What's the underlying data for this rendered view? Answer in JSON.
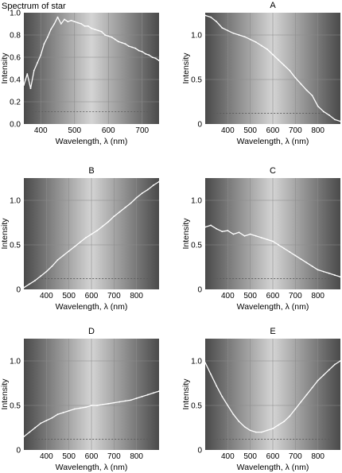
{
  "chart_data": [
    {
      "id": "spectrum-of-star",
      "type": "line",
      "title": "Spectrum of star",
      "xlabel": "Wavelength, λ (nm)",
      "ylabel": "Intensity",
      "xlim": [
        350,
        750
      ],
      "ylim": [
        0,
        1.0
      ],
      "x_ticks": [
        400,
        500,
        600,
        700
      ],
      "y_ticks": [
        0,
        0.2,
        0.4,
        0.6,
        0.8,
        1.0
      ],
      "y_tick_labels": [
        "0.0",
        "0.2",
        "0.4",
        "0.6",
        "0.8",
        "1.0"
      ],
      "grid": true,
      "dashed_reference": 0.11,
      "series": [
        {
          "x": [
            350,
            360,
            370,
            380,
            390,
            400,
            410,
            420,
            430,
            440,
            450,
            460,
            470,
            480,
            490,
            500,
            510,
            520,
            530,
            540,
            550,
            560,
            570,
            580,
            590,
            600,
            610,
            620,
            630,
            640,
            650,
            660,
            670,
            680,
            690,
            700,
            710,
            720,
            730,
            740,
            750
          ],
          "y": [
            0.35,
            0.45,
            0.32,
            0.48,
            0.55,
            0.62,
            0.72,
            0.78,
            0.85,
            0.9,
            0.96,
            0.9,
            0.94,
            0.92,
            0.93,
            0.92,
            0.91,
            0.9,
            0.88,
            0.88,
            0.86,
            0.85,
            0.84,
            0.83,
            0.8,
            0.79,
            0.78,
            0.76,
            0.74,
            0.73,
            0.72,
            0.7,
            0.69,
            0.68,
            0.66,
            0.65,
            0.63,
            0.62,
            0.6,
            0.59,
            0.57
          ]
        }
      ]
    },
    {
      "id": "A",
      "type": "line",
      "title": "A",
      "xlabel": "Wavelength, λ (nm)",
      "ylabel": "Intensity",
      "xlim": [
        300,
        900
      ],
      "ylim": [
        0,
        1.25
      ],
      "x_ticks": [
        400,
        500,
        600,
        700,
        800
      ],
      "y_ticks": [
        0,
        0.5,
        1.0
      ],
      "y_tick_labels": [
        "0",
        "0.5",
        "1.0"
      ],
      "grid": true,
      "dashed_reference": 0.12,
      "series": [
        {
          "x": [
            300,
            325,
            350,
            375,
            400,
            425,
            450,
            475,
            500,
            525,
            550,
            575,
            600,
            625,
            650,
            675,
            700,
            725,
            750,
            775,
            800,
            825,
            850,
            875,
            900
          ],
          "y": [
            1.22,
            1.2,
            1.15,
            1.08,
            1.05,
            1.02,
            1.0,
            0.98,
            0.95,
            0.92,
            0.88,
            0.84,
            0.78,
            0.72,
            0.66,
            0.6,
            0.52,
            0.45,
            0.38,
            0.32,
            0.2,
            0.14,
            0.1,
            0.05,
            0.03
          ]
        }
      ]
    },
    {
      "id": "B",
      "type": "line",
      "title": "B",
      "xlabel": "Wavelength, λ (nm)",
      "ylabel": "Intensity",
      "xlim": [
        300,
        900
      ],
      "ylim": [
        0,
        1.25
      ],
      "x_ticks": [
        400,
        500,
        600,
        700,
        800
      ],
      "y_ticks": [
        0,
        0.5,
        1.0
      ],
      "y_tick_labels": [
        "0",
        "0.5",
        "1.0"
      ],
      "grid": true,
      "dashed_reference": 0.12,
      "series": [
        {
          "x": [
            300,
            325,
            350,
            375,
            400,
            425,
            450,
            475,
            500,
            525,
            550,
            575,
            600,
            625,
            650,
            675,
            700,
            725,
            750,
            775,
            800,
            825,
            850,
            875,
            900
          ],
          "y": [
            0.02,
            0.06,
            0.1,
            0.15,
            0.2,
            0.26,
            0.33,
            0.38,
            0.43,
            0.48,
            0.53,
            0.58,
            0.62,
            0.66,
            0.71,
            0.76,
            0.82,
            0.87,
            0.92,
            0.97,
            1.03,
            1.08,
            1.12,
            1.17,
            1.21
          ]
        }
      ]
    },
    {
      "id": "C",
      "type": "line",
      "title": "C",
      "xlabel": "Wavelength, λ (nm)",
      "ylabel": "Intensity",
      "xlim": [
        300,
        900
      ],
      "ylim": [
        0,
        1.25
      ],
      "x_ticks": [
        400,
        500,
        600,
        700,
        800
      ],
      "y_ticks": [
        0,
        0.5,
        1.0
      ],
      "y_tick_labels": [
        "0",
        "0.5",
        "1.0"
      ],
      "grid": true,
      "dashed_reference": 0.12,
      "series": [
        {
          "x": [
            300,
            325,
            350,
            375,
            400,
            425,
            450,
            475,
            500,
            525,
            550,
            575,
            600,
            625,
            650,
            675,
            700,
            725,
            750,
            775,
            800,
            825,
            850,
            875,
            900
          ],
          "y": [
            0.7,
            0.72,
            0.68,
            0.65,
            0.66,
            0.62,
            0.64,
            0.6,
            0.62,
            0.6,
            0.58,
            0.56,
            0.54,
            0.5,
            0.46,
            0.42,
            0.38,
            0.34,
            0.3,
            0.26,
            0.22,
            0.2,
            0.18,
            0.16,
            0.14
          ]
        }
      ]
    },
    {
      "id": "D",
      "type": "line",
      "title": "D",
      "xlabel": "Wavelength, λ (nm)",
      "ylabel": "Intensity",
      "xlim": [
        300,
        900
      ],
      "ylim": [
        0,
        1.25
      ],
      "x_ticks": [
        400,
        500,
        600,
        700,
        800
      ],
      "y_ticks": [
        0,
        0.5,
        1.0
      ],
      "y_tick_labels": [
        "0",
        "0.5",
        "1.0"
      ],
      "grid": true,
      "dashed_reference": 0.12,
      "series": [
        {
          "x": [
            300,
            325,
            350,
            375,
            400,
            425,
            450,
            475,
            500,
            525,
            550,
            575,
            600,
            625,
            650,
            675,
            700,
            725,
            750,
            775,
            800,
            825,
            850,
            875,
            900
          ],
          "y": [
            0.15,
            0.2,
            0.25,
            0.3,
            0.33,
            0.36,
            0.4,
            0.42,
            0.44,
            0.46,
            0.47,
            0.48,
            0.5,
            0.5,
            0.51,
            0.52,
            0.53,
            0.54,
            0.55,
            0.56,
            0.58,
            0.6,
            0.62,
            0.64,
            0.66
          ]
        }
      ]
    },
    {
      "id": "E",
      "type": "line",
      "title": "E",
      "xlabel": "Wavelength, λ (nm)",
      "ylabel": "Intensity",
      "xlim": [
        300,
        900
      ],
      "ylim": [
        0,
        1.25
      ],
      "x_ticks": [
        400,
        500,
        600,
        700,
        800
      ],
      "y_ticks": [
        0,
        0.5,
        1.0
      ],
      "y_tick_labels": [
        "0",
        "0.5",
        "1.0"
      ],
      "grid": true,
      "dashed_reference": 0.12,
      "series": [
        {
          "x": [
            300,
            325,
            350,
            375,
            400,
            425,
            450,
            475,
            500,
            525,
            550,
            575,
            600,
            625,
            650,
            675,
            700,
            725,
            750,
            775,
            800,
            825,
            850,
            875,
            900
          ],
          "y": [
            0.98,
            0.85,
            0.72,
            0.6,
            0.5,
            0.4,
            0.32,
            0.26,
            0.22,
            0.2,
            0.2,
            0.22,
            0.24,
            0.28,
            0.32,
            0.38,
            0.46,
            0.54,
            0.62,
            0.7,
            0.78,
            0.84,
            0.9,
            0.96,
            1.0
          ]
        }
      ]
    }
  ],
  "colors": {
    "panel_edge": "#4a4a4a",
    "panel_center": "#d4d4d4",
    "grid": "#8c8c8c",
    "line": "#ffffff",
    "dashed": "#5a5a5a",
    "text": "#000000"
  }
}
